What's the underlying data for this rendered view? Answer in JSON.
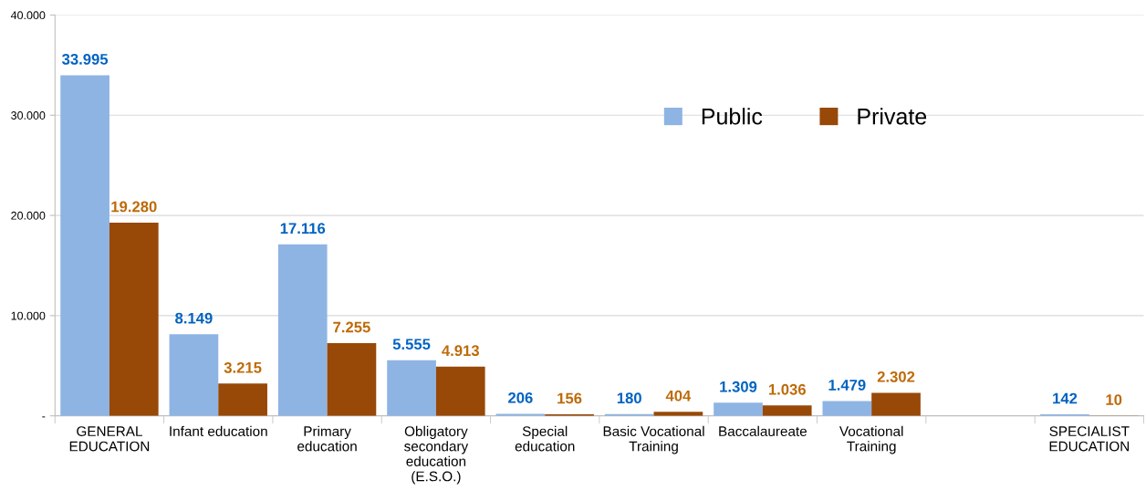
{
  "chart_data": {
    "type": "bar",
    "categories": [
      "GENERAL\nEDUCATION",
      "Infant education",
      "Primary\neducation",
      "Obligatory\nsecondary\neducation\n(E.S.O.)",
      "Special\neducation",
      "Basic Vocational\nTraining",
      "Baccalaureate",
      "Vocational\nTraining",
      null,
      "SPECIALIST\nEDUCATION"
    ],
    "series": [
      {
        "name": "Public",
        "color": "#8eb4e3",
        "values": [
          33995,
          8149,
          17116,
          5555,
          206,
          180,
          1309,
          1479,
          null,
          142
        ],
        "value_labels": [
          "33.995",
          "8.149",
          "17.116",
          "5.555",
          "206",
          "180",
          "1.309",
          "1.479",
          null,
          "142"
        ]
      },
      {
        "name": "Private",
        "color": "#984807",
        "values": [
          19280,
          3215,
          7255,
          4913,
          156,
          404,
          1036,
          2302,
          null,
          10
        ],
        "value_labels": [
          "19.280",
          "3.215",
          "7.255",
          "4.913",
          "156",
          "404",
          "1.036",
          "2.302",
          null,
          "10"
        ]
      }
    ],
    "ylim": [
      0,
      40000
    ],
    "yticks": [
      {
        "value": 0,
        "label": "-"
      },
      {
        "value": 10000,
        "label": "10.000"
      },
      {
        "value": 20000,
        "label": "20.000"
      },
      {
        "value": 30000,
        "label": "30.000"
      },
      {
        "value": 40000,
        "label": "40.000"
      }
    ],
    "grid": "y",
    "legend": "top right"
  }
}
